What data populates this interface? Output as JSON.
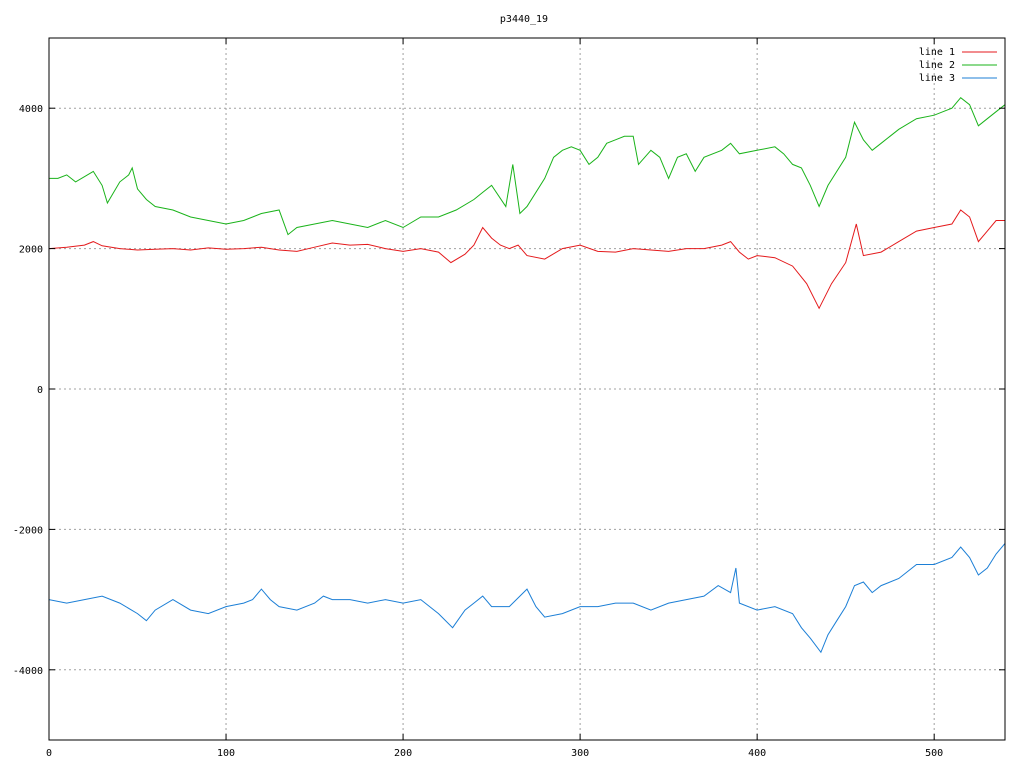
{
  "chart_data": {
    "type": "line",
    "title": "p3440_19",
    "xlim": [
      0,
      540
    ],
    "ylim": [
      -5000,
      5000
    ],
    "xticks": [
      0,
      100,
      200,
      300,
      400,
      500
    ],
    "yticks": [
      -4000,
      -2000,
      0,
      2000,
      4000
    ],
    "grid": true,
    "legend_position": "top-right",
    "series": [
      {
        "name": "line 1",
        "color": "#e41a1c",
        "points": [
          [
            0,
            2000
          ],
          [
            10,
            2020
          ],
          [
            20,
            2050
          ],
          [
            25,
            2100
          ],
          [
            30,
            2040
          ],
          [
            40,
            2000
          ],
          [
            50,
            1980
          ],
          [
            60,
            1990
          ],
          [
            70,
            2000
          ],
          [
            80,
            1980
          ],
          [
            90,
            2010
          ],
          [
            100,
            1990
          ],
          [
            110,
            2000
          ],
          [
            120,
            2020
          ],
          [
            130,
            1980
          ],
          [
            140,
            1960
          ],
          [
            150,
            2020
          ],
          [
            160,
            2080
          ],
          [
            170,
            2050
          ],
          [
            180,
            2060
          ],
          [
            190,
            2000
          ],
          [
            200,
            1960
          ],
          [
            210,
            2000
          ],
          [
            220,
            1950
          ],
          [
            227,
            1800
          ],
          [
            235,
            1920
          ],
          [
            240,
            2050
          ],
          [
            245,
            2300
          ],
          [
            250,
            2150
          ],
          [
            255,
            2050
          ],
          [
            260,
            2000
          ],
          [
            265,
            2050
          ],
          [
            270,
            1900
          ],
          [
            280,
            1850
          ],
          [
            290,
            2000
          ],
          [
            300,
            2050
          ],
          [
            310,
            1960
          ],
          [
            320,
            1950
          ],
          [
            330,
            2000
          ],
          [
            340,
            1980
          ],
          [
            350,
            1960
          ],
          [
            360,
            2000
          ],
          [
            370,
            2000
          ],
          [
            380,
            2050
          ],
          [
            385,
            2100
          ],
          [
            390,
            1950
          ],
          [
            395,
            1850
          ],
          [
            400,
            1900
          ],
          [
            410,
            1870
          ],
          [
            420,
            1750
          ],
          [
            428,
            1500
          ],
          [
            435,
            1150
          ],
          [
            442,
            1500
          ],
          [
            450,
            1800
          ],
          [
            456,
            2350
          ],
          [
            460,
            1900
          ],
          [
            470,
            1950
          ],
          [
            480,
            2100
          ],
          [
            490,
            2250
          ],
          [
            500,
            2300
          ],
          [
            510,
            2350
          ],
          [
            515,
            2550
          ],
          [
            520,
            2450
          ],
          [
            525,
            2100
          ],
          [
            530,
            2250
          ],
          [
            535,
            2400
          ],
          [
            540,
            2400
          ]
        ]
      },
      {
        "name": "line 2",
        "color": "#1ab31a",
        "points": [
          [
            0,
            3000
          ],
          [
            5,
            3000
          ],
          [
            10,
            3050
          ],
          [
            15,
            2950
          ],
          [
            25,
            3100
          ],
          [
            30,
            2900
          ],
          [
            33,
            2650
          ],
          [
            40,
            2950
          ],
          [
            45,
            3050
          ],
          [
            47,
            3150
          ],
          [
            50,
            2850
          ],
          [
            55,
            2700
          ],
          [
            60,
            2600
          ],
          [
            70,
            2550
          ],
          [
            80,
            2450
          ],
          [
            90,
            2400
          ],
          [
            100,
            2350
          ],
          [
            110,
            2400
          ],
          [
            120,
            2500
          ],
          [
            130,
            2550
          ],
          [
            135,
            2200
          ],
          [
            140,
            2300
          ],
          [
            150,
            2350
          ],
          [
            160,
            2400
          ],
          [
            170,
            2350
          ],
          [
            180,
            2300
          ],
          [
            190,
            2400
          ],
          [
            200,
            2300
          ],
          [
            210,
            2450
          ],
          [
            220,
            2450
          ],
          [
            230,
            2550
          ],
          [
            240,
            2700
          ],
          [
            245,
            2800
          ],
          [
            250,
            2900
          ],
          [
            258,
            2600
          ],
          [
            262,
            3200
          ],
          [
            266,
            2500
          ],
          [
            270,
            2600
          ],
          [
            280,
            3000
          ],
          [
            285,
            3300
          ],
          [
            290,
            3400
          ],
          [
            295,
            3450
          ],
          [
            300,
            3400
          ],
          [
            305,
            3200
          ],
          [
            310,
            3300
          ],
          [
            315,
            3500
          ],
          [
            320,
            3550
          ],
          [
            325,
            3600
          ],
          [
            330,
            3600
          ],
          [
            333,
            3200
          ],
          [
            340,
            3400
          ],
          [
            345,
            3300
          ],
          [
            350,
            3000
          ],
          [
            355,
            3300
          ],
          [
            360,
            3350
          ],
          [
            365,
            3100
          ],
          [
            370,
            3300
          ],
          [
            380,
            3400
          ],
          [
            385,
            3500
          ],
          [
            390,
            3350
          ],
          [
            400,
            3400
          ],
          [
            410,
            3450
          ],
          [
            415,
            3350
          ],
          [
            420,
            3200
          ],
          [
            425,
            3150
          ],
          [
            430,
            2900
          ],
          [
            435,
            2600
          ],
          [
            440,
            2900
          ],
          [
            445,
            3100
          ],
          [
            450,
            3300
          ],
          [
            455,
            3800
          ],
          [
            460,
            3550
          ],
          [
            465,
            3400
          ],
          [
            470,
            3500
          ],
          [
            480,
            3700
          ],
          [
            490,
            3850
          ],
          [
            500,
            3900
          ],
          [
            505,
            3950
          ],
          [
            510,
            4000
          ],
          [
            515,
            4150
          ],
          [
            520,
            4050
          ],
          [
            525,
            3750
          ],
          [
            530,
            3850
          ],
          [
            535,
            3950
          ],
          [
            540,
            4050
          ]
        ]
      },
      {
        "name": "line 3",
        "color": "#1c7fd6",
        "points": [
          [
            0,
            -3000
          ],
          [
            10,
            -3050
          ],
          [
            20,
            -3000
          ],
          [
            30,
            -2950
          ],
          [
            40,
            -3050
          ],
          [
            50,
            -3200
          ],
          [
            55,
            -3300
          ],
          [
            60,
            -3150
          ],
          [
            70,
            -3000
          ],
          [
            80,
            -3150
          ],
          [
            90,
            -3200
          ],
          [
            100,
            -3100
          ],
          [
            110,
            -3050
          ],
          [
            115,
            -3000
          ],
          [
            120,
            -2850
          ],
          [
            125,
            -3000
          ],
          [
            130,
            -3100
          ],
          [
            140,
            -3150
          ],
          [
            150,
            -3050
          ],
          [
            155,
            -2950
          ],
          [
            160,
            -3000
          ],
          [
            170,
            -3000
          ],
          [
            180,
            -3050
          ],
          [
            190,
            -3000
          ],
          [
            200,
            -3050
          ],
          [
            210,
            -3000
          ],
          [
            220,
            -3200
          ],
          [
            228,
            -3400
          ],
          [
            235,
            -3150
          ],
          [
            240,
            -3050
          ],
          [
            245,
            -2950
          ],
          [
            250,
            -3100
          ],
          [
            260,
            -3100
          ],
          [
            266,
            -2950
          ],
          [
            270,
            -2850
          ],
          [
            275,
            -3100
          ],
          [
            280,
            -3250
          ],
          [
            290,
            -3200
          ],
          [
            300,
            -3100
          ],
          [
            310,
            -3100
          ],
          [
            320,
            -3050
          ],
          [
            330,
            -3050
          ],
          [
            340,
            -3150
          ],
          [
            350,
            -3050
          ],
          [
            360,
            -3000
          ],
          [
            370,
            -2950
          ],
          [
            378,
            -2800
          ],
          [
            385,
            -2900
          ],
          [
            388,
            -2550
          ],
          [
            390,
            -3050
          ],
          [
            400,
            -3150
          ],
          [
            410,
            -3100
          ],
          [
            420,
            -3200
          ],
          [
            425,
            -3400
          ],
          [
            430,
            -3550
          ],
          [
            436,
            -3750
          ],
          [
            440,
            -3500
          ],
          [
            445,
            -3300
          ],
          [
            450,
            -3100
          ],
          [
            455,
            -2800
          ],
          [
            460,
            -2750
          ],
          [
            465,
            -2900
          ],
          [
            470,
            -2800
          ],
          [
            480,
            -2700
          ],
          [
            490,
            -2500
          ],
          [
            500,
            -2500
          ],
          [
            510,
            -2400
          ],
          [
            515,
            -2250
          ],
          [
            520,
            -2400
          ],
          [
            525,
            -2650
          ],
          [
            530,
            -2550
          ],
          [
            535,
            -2350
          ],
          [
            540,
            -2200
          ]
        ]
      }
    ]
  }
}
